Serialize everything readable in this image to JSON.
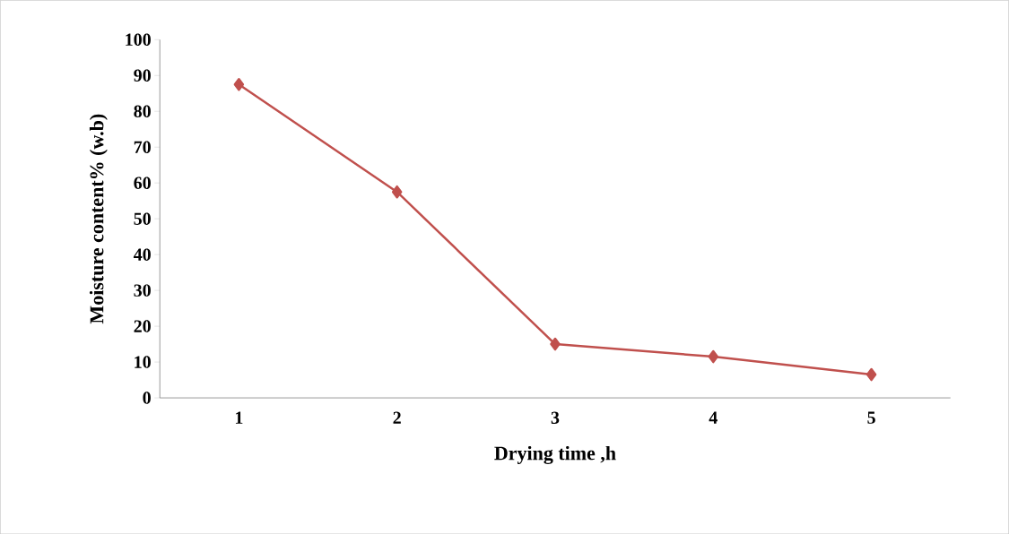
{
  "chart_data": {
    "type": "line",
    "xlabel": "Drying time ,h",
    "ylabel": "Moisture content% (w.b)",
    "categories": [
      "1",
      "2",
      "3",
      "4",
      "5"
    ],
    "series": [
      {
        "color": "#c0504d",
        "values": [
          87.5,
          57.5,
          15,
          11.5,
          6.5
        ]
      }
    ],
    "ylim": [
      0,
      100
    ],
    "yticks": [
      0,
      10,
      20,
      30,
      40,
      50,
      60,
      70,
      80,
      90,
      100
    ],
    "marker": "diamond",
    "line_style": "solid",
    "grid": false,
    "legend": false
  }
}
